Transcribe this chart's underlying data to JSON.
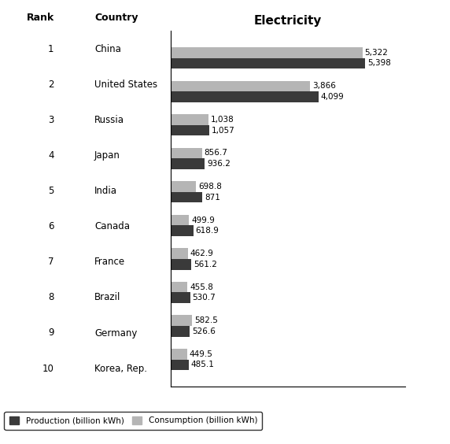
{
  "title": "Electricity",
  "col_rank": "Rank",
  "col_country": "Country",
  "countries": [
    "China",
    "United States",
    "Russia",
    "Japan",
    "India",
    "Canada",
    "France",
    "Brazil",
    "Germany",
    "Korea, Rep."
  ],
  "ranks": [
    "1",
    "2",
    "3",
    "4",
    "5",
    "6",
    "7",
    "8",
    "9",
    "10"
  ],
  "production": [
    5398,
    4099,
    1057,
    936.2,
    871,
    618.9,
    561.2,
    530.7,
    526.6,
    485.1
  ],
  "consumption": [
    5322,
    3866,
    1038,
    856.7,
    698.8,
    499.9,
    462.9,
    455.8,
    582.5,
    449.5
  ],
  "production_labels": [
    "5,398",
    "4,099",
    "1,057",
    "936.2",
    "871",
    "618.9",
    "561.2",
    "530.7",
    "526.6",
    "485.1"
  ],
  "consumption_labels": [
    "5,322",
    "3,866",
    "1,038",
    "856.7",
    "698.8",
    "499.9",
    "462.9",
    "455.8",
    "582.5",
    "449.5"
  ],
  "production_color": "#3a3a3a",
  "consumption_color": "#b5b5b5",
  "background_color": "#ffffff",
  "bar_height": 0.32,
  "xlim_max": 6500,
  "legend_production": "Production (billion kWh)",
  "legend_consumption": "Consumption (billion kWh)",
  "title_fontsize": 11,
  "label_fontsize": 7.5,
  "tick_fontsize": 8.5,
  "header_fontsize": 9
}
